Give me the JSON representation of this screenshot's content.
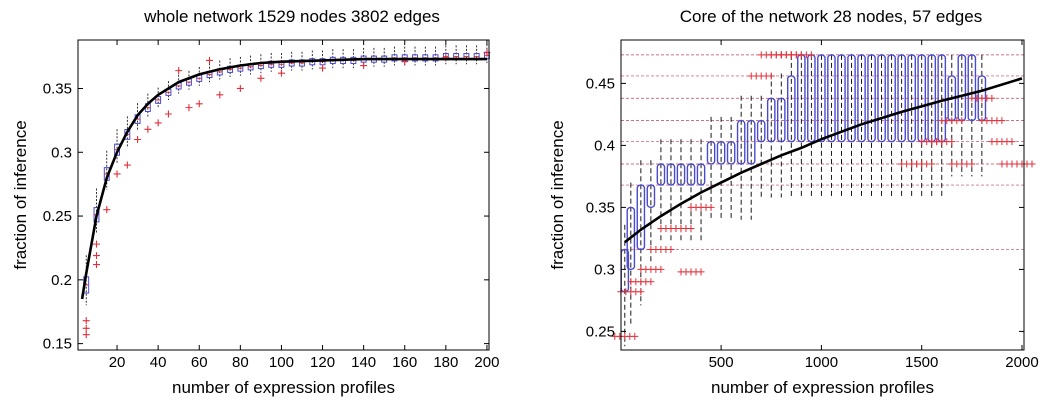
{
  "chart_data": [
    {
      "type": "box",
      "title": "whole network 1529 nodes 3802 edges",
      "xlabel": "number of expression profiles",
      "ylabel": "fraction of inference",
      "xlim": [
        1,
        201
      ],
      "ylim": [
        0.145,
        0.388
      ],
      "xticks": [
        20,
        40,
        60,
        80,
        100,
        120,
        140,
        160,
        180,
        200
      ],
      "yticks": [
        0.15,
        0.2,
        0.25,
        0.3,
        0.35
      ],
      "ytick_labels": [
        "0.15",
        "0.2",
        "0.25",
        "0.3",
        "0.35"
      ],
      "grid": false,
      "fit_curve": {
        "x": [
          3,
          5,
          10,
          15,
          20,
          25,
          30,
          35,
          40,
          50,
          60,
          70,
          80,
          90,
          100,
          120,
          140,
          160,
          180,
          200
        ],
        "y": [
          0.185,
          0.205,
          0.25,
          0.28,
          0.3,
          0.316,
          0.329,
          0.338,
          0.345,
          0.355,
          0.361,
          0.365,
          0.368,
          0.37,
          0.371,
          0.372,
          0.373,
          0.373,
          0.373,
          0.373
        ]
      },
      "boxes": {
        "x": [
          5,
          10,
          15,
          20,
          25,
          30,
          35,
          40,
          45,
          50,
          55,
          60,
          65,
          70,
          75,
          80,
          85,
          90,
          95,
          100,
          105,
          110,
          115,
          120,
          125,
          130,
          135,
          140,
          145,
          150,
          155,
          160,
          165,
          170,
          175,
          180,
          185,
          190,
          195,
          200
        ],
        "median": [
          0.196,
          0.251,
          0.283,
          0.302,
          0.314,
          0.326,
          0.335,
          0.341,
          0.347,
          0.352,
          0.355,
          0.358,
          0.361,
          0.363,
          0.365,
          0.366,
          0.367,
          0.368,
          0.369,
          0.369,
          0.37,
          0.37,
          0.371,
          0.371,
          0.372,
          0.372,
          0.372,
          0.373,
          0.373,
          0.373,
          0.374,
          0.374,
          0.374,
          0.374,
          0.374,
          0.375,
          0.375,
          0.375,
          0.375,
          0.376
        ]
      },
      "outliers": {
        "x": [
          5,
          5,
          5,
          10,
          10,
          10,
          15,
          20,
          25,
          30,
          35,
          40,
          45,
          50,
          55,
          60,
          65,
          70,
          80,
          90,
          100,
          120,
          140,
          160,
          180,
          200
        ],
        "y": [
          0.168,
          0.162,
          0.157,
          0.228,
          0.219,
          0.212,
          0.255,
          0.283,
          0.29,
          0.31,
          0.318,
          0.323,
          0.33,
          0.364,
          0.335,
          0.338,
          0.372,
          0.345,
          0.35,
          0.358,
          0.362,
          0.366,
          0.368,
          0.371,
          0.374,
          0.378
        ]
      }
    },
    {
      "type": "box",
      "title": "Core of the network 28 nodes, 57 edges",
      "xlabel": "number of expression profiles",
      "ylabel": "fraction of inference",
      "xlim": [
        1,
        2010
      ],
      "ylim": [
        0.235,
        0.485
      ],
      "xticks": [
        500,
        1000,
        1500,
        2000
      ],
      "yticks": [
        0.25,
        0.3,
        0.35,
        0.4,
        0.45
      ],
      "ytick_labels": [
        "0.25",
        "0.3",
        "0.35",
        "0.4",
        "0.45"
      ],
      "grid": false,
      "fit_curve": {
        "x": [
          20,
          100,
          200,
          300,
          400,
          500,
          600,
          700,
          800,
          900,
          1000,
          1200,
          1400,
          1600,
          1800,
          2000
        ],
        "y": [
          0.322,
          0.332,
          0.343,
          0.353,
          0.362,
          0.37,
          0.378,
          0.385,
          0.392,
          0.398,
          0.405,
          0.417,
          0.427,
          0.436,
          0.444,
          0.454
        ]
      },
      "levels": [
        0.316,
        0.368,
        0.385,
        0.403,
        0.42,
        0.438,
        0.456,
        0.473
      ],
      "boxes": {
        "x": [
          20,
          50,
          100,
          150,
          200,
          250,
          300,
          350,
          400,
          450,
          500,
          550,
          600,
          650,
          700,
          750,
          800,
          850,
          900,
          950,
          1000,
          1050,
          1100,
          1150,
          1200,
          1250,
          1300,
          1350,
          1400,
          1450,
          1500,
          1550,
          1600,
          1650,
          1700,
          1750,
          1800
        ],
        "q1": [
          0.282,
          0.3,
          0.316,
          0.35,
          0.368,
          0.368,
          0.368,
          0.368,
          0.368,
          0.385,
          0.385,
          0.385,
          0.385,
          0.385,
          0.403,
          0.403,
          0.403,
          0.403,
          0.403,
          0.403,
          0.403,
          0.403,
          0.403,
          0.403,
          0.403,
          0.403,
          0.403,
          0.403,
          0.403,
          0.403,
          0.403,
          0.403,
          0.403,
          0.42,
          0.42,
          0.42,
          0.42
        ],
        "q3": [
          0.316,
          0.35,
          0.368,
          0.368,
          0.385,
          0.385,
          0.385,
          0.385,
          0.385,
          0.403,
          0.403,
          0.403,
          0.42,
          0.42,
          0.42,
          0.438,
          0.438,
          0.456,
          0.473,
          0.473,
          0.473,
          0.473,
          0.473,
          0.473,
          0.473,
          0.473,
          0.473,
          0.473,
          0.473,
          0.473,
          0.473,
          0.473,
          0.473,
          0.456,
          0.473,
          0.473,
          0.456
        ]
      },
      "outliers": {
        "x": [
          20,
          50,
          100,
          150,
          200,
          250,
          300,
          350,
          400,
          700,
          750,
          800,
          850,
          900,
          1450,
          1500,
          1550,
          1600,
          1650,
          1700,
          1800,
          1850,
          1900,
          1950,
          2000
        ],
        "y": [
          0.246,
          0.282,
          0.29,
          0.3,
          0.316,
          0.333,
          0.333,
          0.298,
          0.35,
          0.456,
          0.473,
          0.473,
          0.473,
          0.473,
          0.385,
          0.385,
          0.403,
          0.403,
          0.42,
          0.385,
          0.438,
          0.42,
          0.403,
          0.385,
          0.385
        ]
      }
    }
  ]
}
